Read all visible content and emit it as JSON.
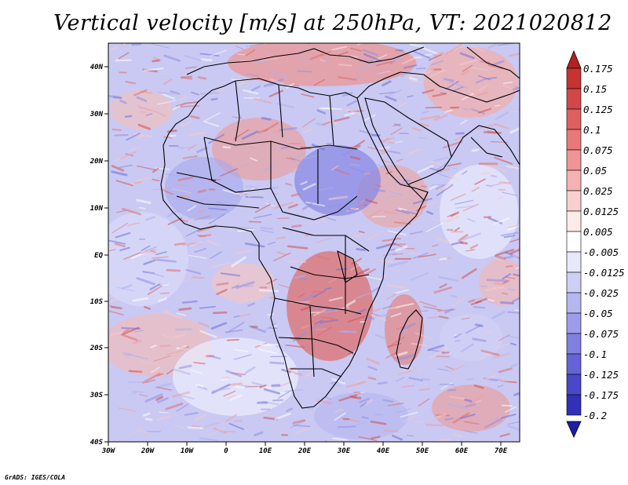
{
  "title": "Vertical velocity [m/s] at 250hPa, VT: 2021020812",
  "footer": "GrADS: IGES/COLA",
  "map": {
    "lon_range": [
      -30,
      75
    ],
    "lat_range": [
      -40,
      45
    ],
    "lat_ticks": [
      "40N",
      "30N",
      "20N",
      "10N",
      "EQ",
      "10S",
      "20S",
      "30S",
      "40S"
    ],
    "lon_ticks": [
      "30W",
      "20W",
      "10W",
      "0",
      "10E",
      "20E",
      "30E",
      "40E",
      "50E",
      "60E",
      "70E"
    ]
  },
  "colorbar": {
    "labels": [
      "0.175",
      "0.15",
      "0.125",
      "0.1",
      "0.075",
      "0.05",
      "0.025",
      "0.0125",
      "0.005",
      "-0.005",
      "-0.0125",
      "-0.025",
      "-0.05",
      "-0.075",
      "-0.1",
      "-0.125",
      "-0.175",
      "-0.2"
    ],
    "colors": [
      "#b32222",
      "#c53333",
      "#d24848",
      "#de5f5f",
      "#e87979",
      "#ef9595",
      "#f5b2b2",
      "#f9cfcf",
      "#fcebeb",
      "#ffffff",
      "#e8e8fb",
      "#cfcff6",
      "#b6b6f0",
      "#9c9cea",
      "#8080e0",
      "#6464d6",
      "#4848c8",
      "#3030b8",
      "#1e1ea6"
    ]
  }
}
